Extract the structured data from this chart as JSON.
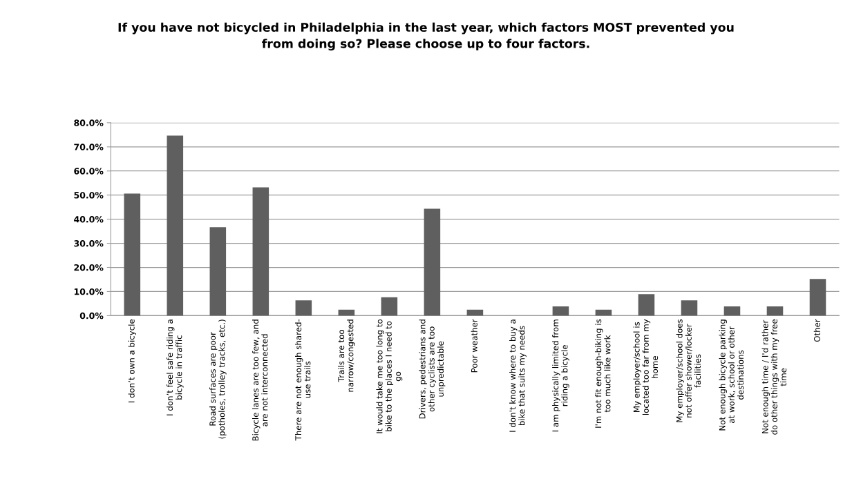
{
  "chart_data": {
    "type": "bar",
    "title": "If you have not bicycled in Philadelphia in the last year, which factors MOST prevented you\nfrom doing so? Please choose up to four factors.",
    "categories": [
      "I don’t own a bicycle",
      "I don’t feel safe riding a\nbicycle in traffic",
      "Road surfaces are poor\n(potholes, trolley tracks, etc.)",
      "Bicycle lanes are too few, and\nare not interconnected",
      "There are not enough shared-\nuse trails",
      "Trails are too\nnarrow/congested",
      "It would take me too long to\nbike to the places I need to\ngo",
      "Drivers, pedestrians and\nother cyclists are too\nunpredictable",
      "Poor weather",
      "I don't know where to buy a\nbike that suits my needs",
      "I am physically limited from\nriding a bicycle",
      "I'm not fit enough-biking is\ntoo much like work",
      "My employer/school is\nlocated too far from my\nhome",
      "My employer/school does\nnot offer shower/locker\nfacilities",
      "Not enough bicycle parking\nat work, school or other\ndestinations",
      "Not enough time / I'd rather\ndo other things with my free\ntime",
      "Other"
    ],
    "values": [
      50.6,
      74.7,
      36.7,
      53.2,
      6.3,
      2.5,
      7.6,
      44.3,
      2.5,
      0,
      3.8,
      2.5,
      8.9,
      6.3,
      3.8,
      3.8,
      15.2
    ],
    "color": "#5f5f5f",
    "ylim": [
      0,
      80
    ],
    "yticks": [
      {
        "value": 0,
        "label": "0.0%"
      },
      {
        "value": 10,
        "label": "10.0%"
      },
      {
        "value": 20,
        "label": "20.0%"
      },
      {
        "value": 30,
        "label": "30.0%"
      },
      {
        "value": 40,
        "label": "40.0%"
      },
      {
        "value": 50,
        "label": "50.0%"
      },
      {
        "value": 60,
        "label": "60.0%"
      },
      {
        "value": 70,
        "label": "70.0%"
      },
      {
        "value": 80,
        "label": "80.0%"
      }
    ],
    "grid": "y"
  }
}
